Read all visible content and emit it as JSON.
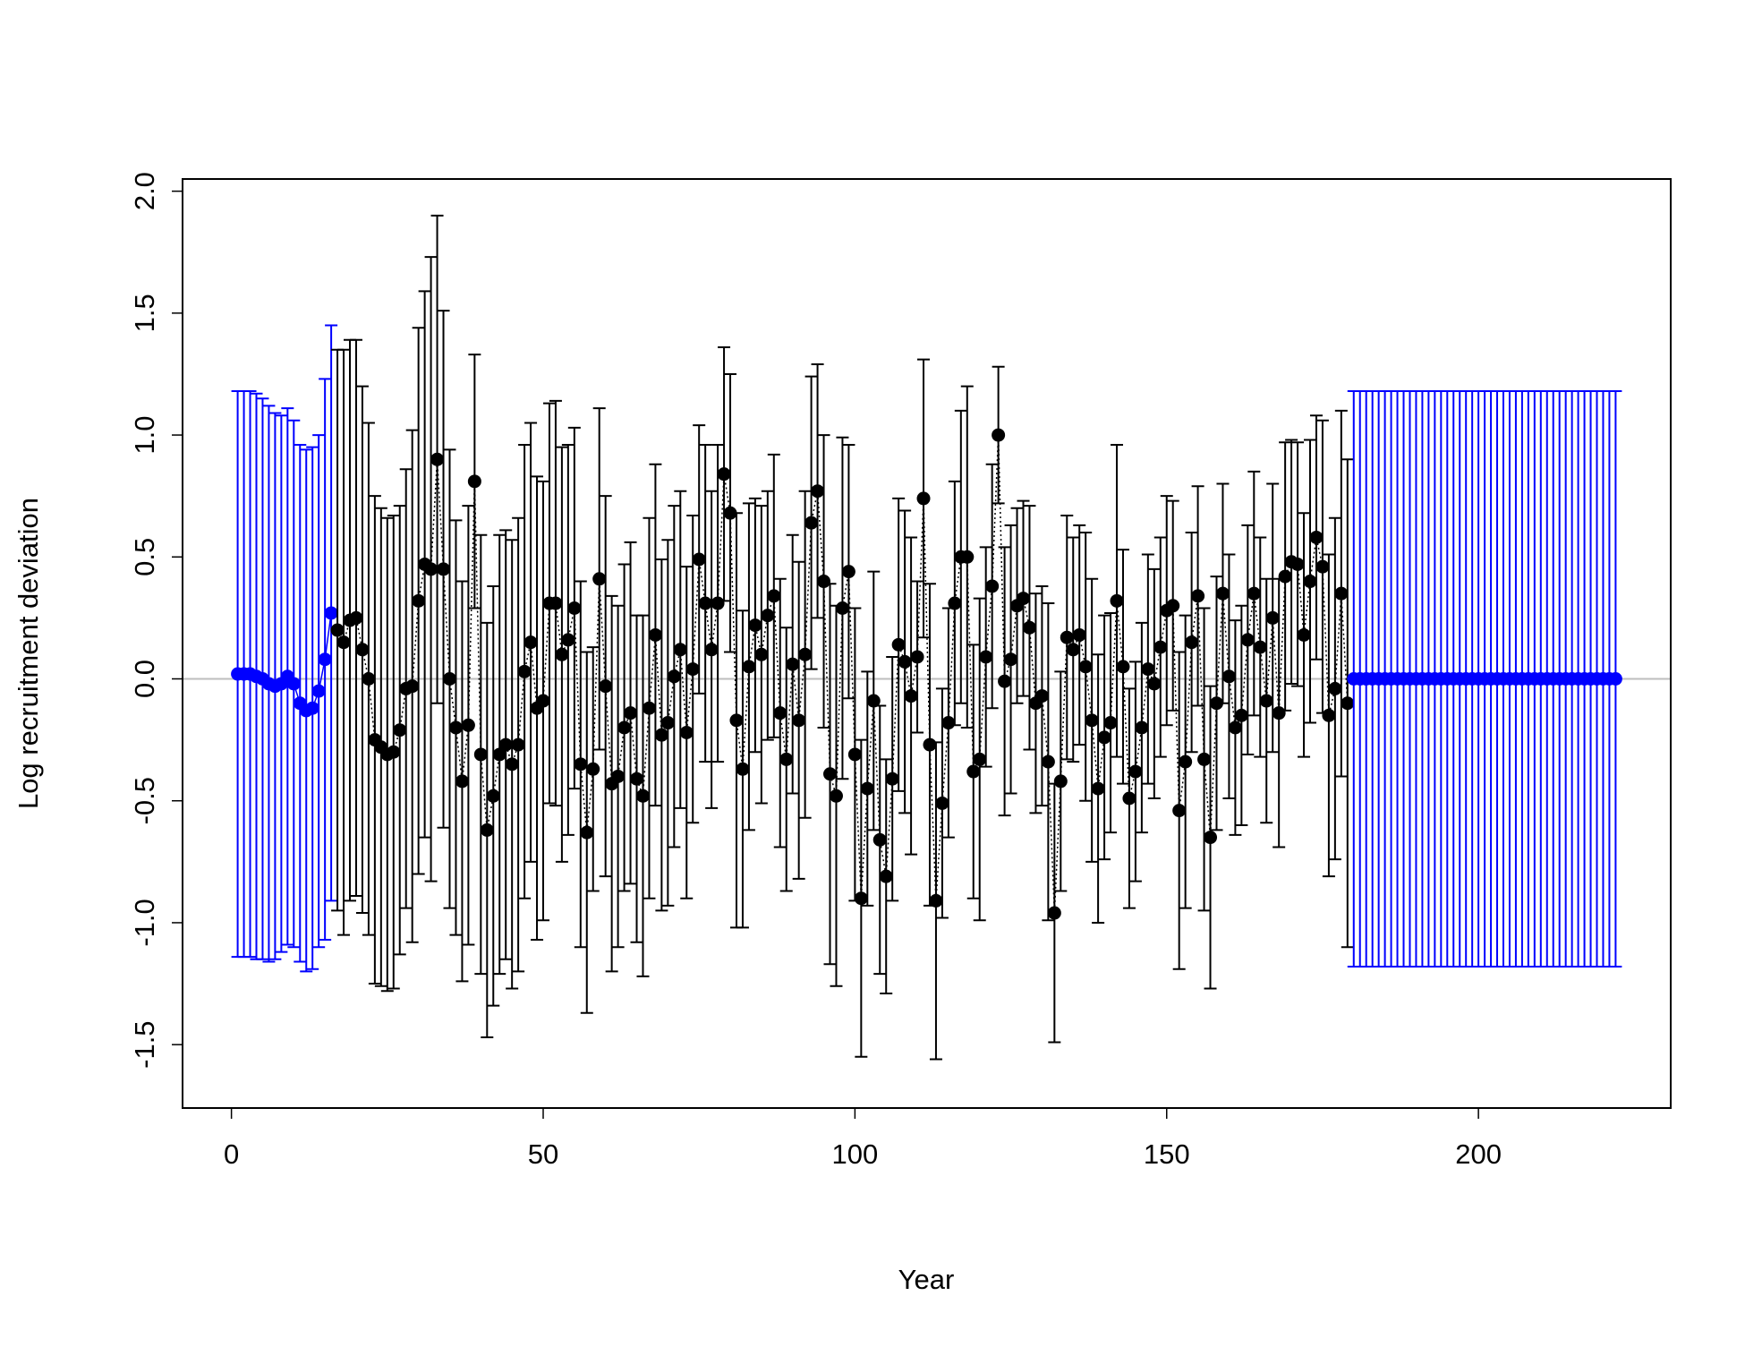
{
  "chart_data": {
    "type": "errorbar",
    "x_label": "Year",
    "y_label": "Log recruitment deviation",
    "xlim": [
      -7.84,
      230.84
    ],
    "ylim": [
      -1.76,
      2.05
    ],
    "xticks": [
      0,
      50,
      100,
      150,
      200
    ],
    "yticks": [
      -1.5,
      {
        "value": -1.0,
        "label": "-1.0"
      },
      -0.5,
      {
        "value": 0.0,
        "label": "0.0"
      },
      0.5,
      {
        "value": 1.0,
        "label": "1.0"
      },
      1.5,
      {
        "value": 2.0,
        "label": "2.0"
      }
    ],
    "reference_line": 0,
    "reference_color": "#bebebe",
    "series": [
      {
        "color": "#0000ff",
        "linestyle": "solid",
        "x": [
          1,
          2,
          3,
          4,
          5,
          6,
          7,
          8,
          9,
          10,
          11,
          12,
          13,
          14,
          15,
          16
        ],
        "values": [
          0.02,
          0.02,
          0.02,
          0.01,
          0,
          -0.02,
          -0.03,
          -0.02,
          0.01,
          -0.02,
          -0.1,
          -0.13,
          -0.12,
          -0.05,
          0.08,
          0.27
        ],
        "errors": [
          1.16,
          1.16,
          1.16,
          1.16,
          1.15,
          1.14,
          1.12,
          1.1,
          1.1,
          1.08,
          1.06,
          1.07,
          1.07,
          1.05,
          1.15,
          1.18
        ]
      },
      {
        "color": "#000000",
        "linestyle": "dotted",
        "x": [
          17,
          18,
          19,
          20,
          21,
          22,
          23,
          24,
          25,
          26,
          27,
          28,
          29,
          30,
          31,
          32,
          33,
          34,
          35,
          36,
          37,
          38,
          39,
          40,
          41,
          42,
          43,
          44,
          45,
          46,
          47,
          48,
          49,
          50,
          51,
          52,
          53,
          54,
          55,
          56,
          57,
          58,
          59,
          60,
          61,
          62,
          63,
          64,
          65,
          66,
          67,
          68,
          69,
          70,
          71,
          72,
          73,
          74,
          75,
          76,
          77,
          78,
          79,
          80,
          81,
          82,
          83,
          84,
          85,
          86,
          87,
          88,
          89,
          90,
          91,
          92,
          93,
          94,
          95,
          96,
          97,
          98,
          99,
          100,
          101,
          102,
          103,
          104,
          105,
          106,
          107,
          108,
          109,
          110,
          111,
          112,
          113,
          114,
          115,
          116,
          117,
          118,
          119,
          120,
          121,
          122,
          123,
          124,
          125,
          126,
          127,
          128,
          129,
          130,
          131,
          132,
          133,
          134,
          135,
          136,
          137,
          138,
          139,
          140,
          141,
          142,
          143,
          144,
          145,
          146,
          147,
          148,
          149,
          150,
          151,
          152,
          153,
          154,
          155,
          156,
          157,
          158,
          159,
          160,
          161,
          162,
          163,
          164,
          165,
          166,
          167,
          168,
          169,
          170,
          171,
          172,
          173,
          174,
          175,
          176,
          177,
          178,
          179
        ],
        "values": [
          0.2,
          0.15,
          0.24,
          0.25,
          0.12,
          0.0,
          -0.25,
          -0.28,
          -0.31,
          -0.3,
          -0.21,
          -0.04,
          -0.03,
          0.32,
          0.47,
          0.45,
          0.9,
          0.45,
          0.0,
          -0.2,
          -0.42,
          -0.19,
          0.81,
          -0.31,
          -0.62,
          -0.48,
          -0.31,
          -0.27,
          -0.35,
          -0.27,
          0.03,
          0.15,
          -0.12,
          -0.09,
          0.31,
          0.31,
          0.1,
          0.16,
          0.29,
          -0.35,
          -0.63,
          -0.37,
          0.41,
          -0.03,
          -0.43,
          -0.4,
          -0.2,
          -0.14,
          -0.41,
          -0.48,
          -0.12,
          0.18,
          -0.23,
          -0.18,
          0.01,
          0.12,
          -0.22,
          0.04,
          0.49,
          0.31,
          0.12,
          0.31,
          0.84,
          0.68,
          -0.17,
          -0.37,
          0.05,
          0.22,
          0.1,
          0.26,
          0.34,
          -0.14,
          -0.33,
          0.06,
          -0.17,
          0.1,
          0.64,
          0.77,
          0.4,
          -0.39,
          -0.48,
          0.29,
          0.44,
          -0.31,
          -0.9,
          -0.45,
          -0.09,
          -0.66,
          -0.81,
          -0.41,
          0.14,
          0.07,
          -0.07,
          0.09,
          0.74,
          -0.27,
          -0.91,
          -0.51,
          -0.18,
          0.31,
          0.5,
          0.5,
          -0.38,
          -0.33,
          0.09,
          0.38,
          1.0,
          -0.01,
          0.08,
          0.3,
          0.33,
          0.21,
          -0.1,
          -0.07,
          -0.34,
          -0.96,
          -0.42,
          0.17,
          0.12,
          0.18,
          0.05,
          -0.17,
          -0.45,
          -0.24,
          -0.18,
          0.32,
          0.05,
          -0.49,
          -0.38,
          -0.2,
          0.04,
          -0.02,
          0.13,
          0.28,
          0.3,
          -0.54,
          -0.34,
          0.15,
          0.34,
          -0.33,
          -0.65,
          -0.1,
          0.35,
          0.01,
          -0.2,
          -0.15,
          0.16,
          0.35,
          0.13,
          -0.09,
          0.25,
          -0.14,
          0.42,
          0.48,
          0.47,
          0.18,
          0.4,
          0.58,
          0.46,
          -0.15,
          -0.04,
          0.35,
          -0.1
        ],
        "errors": [
          1.15,
          1.2,
          1.15,
          1.14,
          1.08,
          1.05,
          1.0,
          0.98,
          0.97,
          0.97,
          0.92,
          0.9,
          1.05,
          1.12,
          1.12,
          1.28,
          1.0,
          1.06,
          0.94,
          0.85,
          0.82,
          0.9,
          0.52,
          0.9,
          0.85,
          0.86,
          0.9,
          0.88,
          0.92,
          0.93,
          0.93,
          0.9,
          0.95,
          0.9,
          0.82,
          0.83,
          0.85,
          0.8,
          0.74,
          0.75,
          0.74,
          0.5,
          0.7,
          0.78,
          0.77,
          0.7,
          0.67,
          0.7,
          0.67,
          0.74,
          0.78,
          0.7,
          0.72,
          0.75,
          0.7,
          0.65,
          0.68,
          0.63,
          0.55,
          0.65,
          0.65,
          0.65,
          0.52,
          0.57,
          0.85,
          0.65,
          0.67,
          0.52,
          0.61,
          0.51,
          0.58,
          0.55,
          0.54,
          0.53,
          0.65,
          0.67,
          0.6,
          0.52,
          0.6,
          0.78,
          0.78,
          0.7,
          0.52,
          0.6,
          0.65,
          0.48,
          0.53,
          0.55,
          0.48,
          0.5,
          0.6,
          0.62,
          0.65,
          0.31,
          0.57,
          0.66,
          0.65,
          0.47,
          0.47,
          0.5,
          0.6,
          0.7,
          0.52,
          0.66,
          0.45,
          0.5,
          0.28,
          0.55,
          0.55,
          0.4,
          0.4,
          0.5,
          0.45,
          0.45,
          0.65,
          0.53,
          0.45,
          0.5,
          0.46,
          0.45,
          0.55,
          0.58,
          0.55,
          0.5,
          0.45,
          0.64,
          0.48,
          0.45,
          0.45,
          0.43,
          0.47,
          0.47,
          0.45,
          0.47,
          0.43,
          0.65,
          0.6,
          0.45,
          0.45,
          0.62,
          0.62,
          0.52,
          0.45,
          0.5,
          0.44,
          0.45,
          0.47,
          0.5,
          0.45,
          0.5,
          0.55,
          0.55,
          0.55,
          0.5,
          0.5,
          0.5,
          0.58,
          0.5,
          0.6,
          0.66,
          0.7,
          0.75,
          1.0
        ]
      },
      {
        "color": "#0000ff",
        "linestyle": "solid",
        "x": [
          180,
          181,
          182,
          183,
          184,
          185,
          186,
          187,
          188,
          189,
          190,
          191,
          192,
          193,
          194,
          195,
          196,
          197,
          198,
          199,
          200,
          201,
          202,
          203,
          204,
          205,
          206,
          207,
          208,
          209,
          210,
          211,
          212,
          213,
          214,
          215,
          216,
          217,
          218,
          219,
          220,
          221,
          222
        ],
        "values": [
          0,
          0,
          0,
          0,
          0,
          0,
          0,
          0,
          0,
          0,
          0,
          0,
          0,
          0,
          0,
          0,
          0,
          0,
          0,
          0,
          0,
          0,
          0,
          0,
          0,
          0,
          0,
          0,
          0,
          0,
          0,
          0,
          0,
          0,
          0,
          0,
          0,
          0,
          0,
          0,
          0,
          0,
          0
        ],
        "errors": [
          1.18,
          1.18,
          1.18,
          1.18,
          1.18,
          1.18,
          1.18,
          1.18,
          1.18,
          1.18,
          1.18,
          1.18,
          1.18,
          1.18,
          1.18,
          1.18,
          1.18,
          1.18,
          1.18,
          1.18,
          1.18,
          1.18,
          1.18,
          1.18,
          1.18,
          1.18,
          1.18,
          1.18,
          1.18,
          1.18,
          1.18,
          1.18,
          1.18,
          1.18,
          1.18,
          1.18,
          1.18,
          1.18,
          1.18,
          1.18,
          1.18,
          1.18,
          1.18
        ]
      }
    ]
  }
}
